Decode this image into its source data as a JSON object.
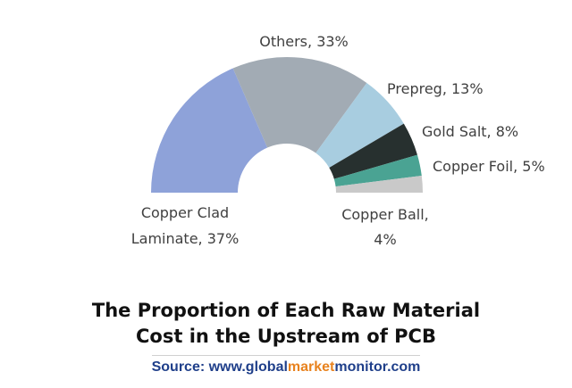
{
  "chart_data": {
    "type": "pie",
    "variant": "half-donut",
    "title": "The Proportion of Each Raw Material Cost in the Upstream of PCB",
    "title_lines": [
      "The Proportion of Each Raw Material",
      "Cost in the Upstream of PCB"
    ],
    "slices": [
      {
        "label": "Copper Clad Laminate",
        "value": 37,
        "color": "#8ea2d9",
        "label_lines": [
          "Copper Clad",
          "Laminate, 37%"
        ]
      },
      {
        "label": "Others",
        "value": 33,
        "color": "#a2abb4",
        "label_lines": [
          "Others, 33%"
        ]
      },
      {
        "label": "Prepreg",
        "value": 13,
        "color": "#a8cde0",
        "label_lines": [
          "Prepreg, 13%"
        ]
      },
      {
        "label": "Gold Salt",
        "value": 8,
        "color": "#27302f",
        "label_lines": [
          "Gold Salt, 8%"
        ]
      },
      {
        "label": "Copper Foil",
        "value": 5,
        "color": "#4aa393",
        "label_lines": [
          "Copper Foil, 5%"
        ]
      },
      {
        "label": "Copper Ball",
        "value": 4,
        "color": "#c9c9c9",
        "label_lines": [
          "Copper Ball,",
          "4%"
        ]
      }
    ]
  },
  "source": {
    "prefix": "Source: www.",
    "part1": "global",
    "part2": "market",
    "part3": "monitor",
    "suffix": ".com"
  }
}
